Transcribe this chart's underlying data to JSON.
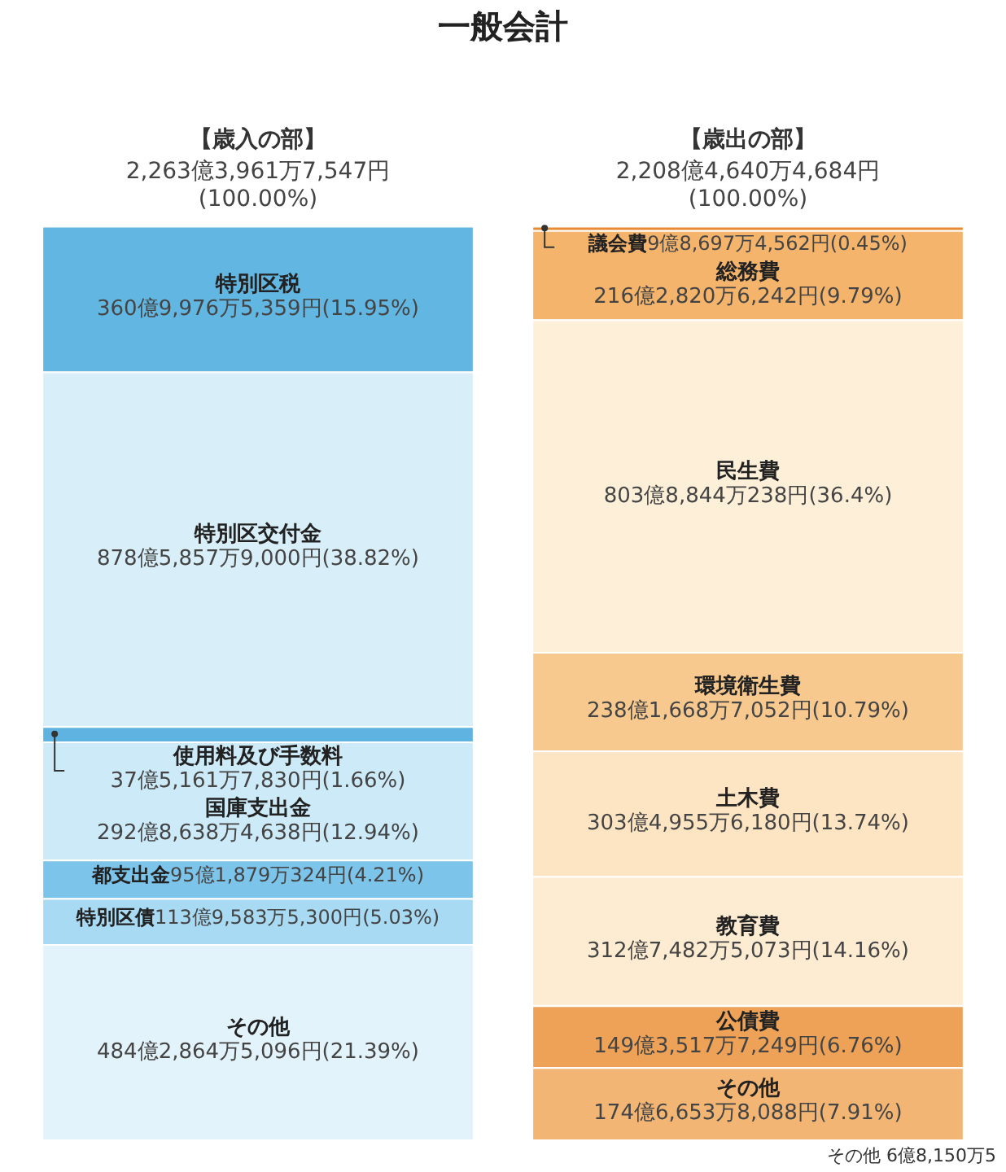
{
  "chart_data": {
    "type": "bar",
    "title": "一般会計",
    "stacked": true,
    "categories": [
      "【歳入の部】",
      "【歳出の部】"
    ],
    "ylim": [
      0,
      100
    ],
    "tick_labels": "x",
    "grid": false,
    "legend": false,
    "totals": [
      "2,263億3,961万7,547円(100.00%)",
      "2,208億4,640万4,684円(100.00%)"
    ],
    "series": [
      {
        "name": "その他",
        "color": "#e3f3fb",
        "values": [
          21.39,
          null
        ],
        "value_labels": [
          "484億2,864万5,096円(21.39%)",
          null
        ]
      },
      {
        "name": "特別区債",
        "color": "#a9daf3",
        "values": [
          5.03,
          null
        ],
        "value_labels": [
          "113億9,583万5,300円(5.03%)",
          null
        ]
      },
      {
        "name": "都支出金",
        "color": "#7cc4ea",
        "values": [
          4.21,
          null
        ],
        "value_labels": [
          "95億1,879万324円(4.21%)",
          null
        ]
      },
      {
        "name": "国庫支出金",
        "color": "#cdeaf8",
        "values": [
          12.94,
          null
        ],
        "value_labels": [
          "292億8,638万4,638円(12.94%)",
          null
        ]
      },
      {
        "name": "使用料及び手数料",
        "color": "#5eb3e0",
        "values": [
          1.66,
          null
        ],
        "value_labels": [
          "37億5,161万7,830円(1.66%)",
          null
        ]
      },
      {
        "name": "特別区交付金",
        "color": "#d8eff9",
        "values": [
          38.82,
          null
        ],
        "value_labels": [
          "878億5,857万9,000円(38.82%)",
          null
        ]
      },
      {
        "name": "特別区税",
        "color": "#62b6e2",
        "values": [
          15.95,
          null
        ],
        "value_labels": [
          "360億9,976万5,359円(15.95%)",
          null
        ]
      },
      {
        "name": "その他",
        "color": "#f2b574",
        "values": [
          null,
          7.91
        ],
        "value_labels": [
          null,
          "174億6,653万8,088円(7.91%)"
        ]
      },
      {
        "name": "公債費",
        "color": "#eda257",
        "values": [
          null,
          6.76
        ],
        "value_labels": [
          null,
          "149億3,517万7,249円(6.76%)"
        ]
      },
      {
        "name": "教育費",
        "color": "#feecd2",
        "values": [
          null,
          14.16
        ],
        "value_labels": [
          null,
          "312億7,482万5,073円(14.16%)"
        ]
      },
      {
        "name": "土木費",
        "color": "#fde4c2",
        "values": [
          null,
          13.74
        ],
        "value_labels": [
          null,
          "303億4,955万6,180円(13.74%)"
        ]
      },
      {
        "name": "環境衛生費",
        "color": "#f8c98e",
        "values": [
          null,
          10.79
        ],
        "value_labels": [
          null,
          "238億1,668万7,052円(10.79%)"
        ]
      },
      {
        "name": "民生費",
        "color": "#fef0d8",
        "values": [
          null,
          36.4
        ],
        "value_labels": [
          null,
          "803億8,844万238円(36.4%)"
        ]
      },
      {
        "name": "総務費",
        "color": "#f4b46c",
        "values": [
          null,
          9.79
        ],
        "value_labels": [
          null,
          "216億2,820万6,242円(9.79%)"
        ]
      },
      {
        "name": "議会費",
        "color": "#e98b35",
        "values": [
          null,
          0.45
        ],
        "value_labels": [
          null,
          "9億8,697万4,562円(0.45%)"
        ]
      }
    ],
    "annotations": [
      "その他 6億8,150万5"
    ]
  }
}
